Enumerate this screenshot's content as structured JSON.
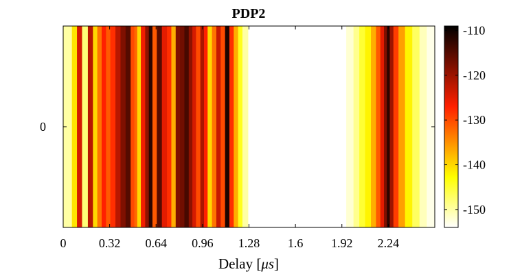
{
  "chart_data": {
    "type": "heatmap",
    "title": "PDP2",
    "xlabel_prefix": "Delay [",
    "xlabel_unit": "μs",
    "xlabel_suffix": "]",
    "xlim": [
      0,
      2.56
    ],
    "x_ticks": [
      0,
      0.32,
      0.64,
      0.96,
      1.28,
      1.6,
      1.92,
      2.24
    ],
    "x_tick_labels": [
      "0",
      "0.32",
      "0.64",
      "0.96",
      "1.28",
      "1.6",
      "1.92",
      "2.24"
    ],
    "y_ticks": [
      0
    ],
    "y_tick_labels": [
      "0"
    ],
    "colorbar": {
      "colormap": "hot",
      "range": [
        -154,
        -109
      ],
      "ticks": [
        -150,
        -140,
        -130,
        -120,
        -110
      ],
      "tick_labels": [
        "-150",
        "-140",
        "-130",
        "-120",
        "-110"
      ]
    },
    "delay_us": [
      0.04,
      0.08,
      0.11,
      0.15,
      0.19,
      0.22,
      0.25,
      0.28,
      0.31,
      0.34,
      0.38,
      0.41,
      0.45,
      0.48,
      0.5,
      0.52,
      0.55,
      0.58,
      0.6,
      0.63,
      0.66,
      0.7,
      0.73,
      0.76,
      0.79,
      0.82,
      0.85,
      0.88,
      0.9,
      0.93,
      0.96,
      0.98,
      1.01,
      1.04,
      1.07,
      1.1,
      1.13,
      1.16,
      1.19,
      1.22,
      1.25,
      1.3,
      1.6,
      1.92,
      1.98,
      2.02,
      2.06,
      2.1,
      2.14,
      2.17,
      2.2,
      2.22,
      2.24,
      2.26,
      2.29,
      2.33,
      2.38,
      2.43,
      2.48,
      2.53
    ],
    "power_db": [
      -150,
      -141,
      -124,
      -148,
      -122,
      -140,
      -133,
      -127,
      -131,
      -128,
      -122,
      -118,
      -115,
      -130,
      -132,
      -140,
      -126,
      -119,
      -112,
      -131,
      -115,
      -125,
      -128,
      -137,
      -118,
      -117,
      -114,
      -119,
      -124,
      -130,
      -121,
      -127,
      -140,
      -133,
      -123,
      -130,
      -111,
      -128,
      -137,
      -144,
      -150,
      -154,
      -154,
      -154,
      -152,
      -149,
      -145,
      -142,
      -137,
      -131,
      -125,
      -118,
      -112,
      -120,
      -129,
      -136,
      -142,
      -147,
      -151,
      -153
    ]
  }
}
